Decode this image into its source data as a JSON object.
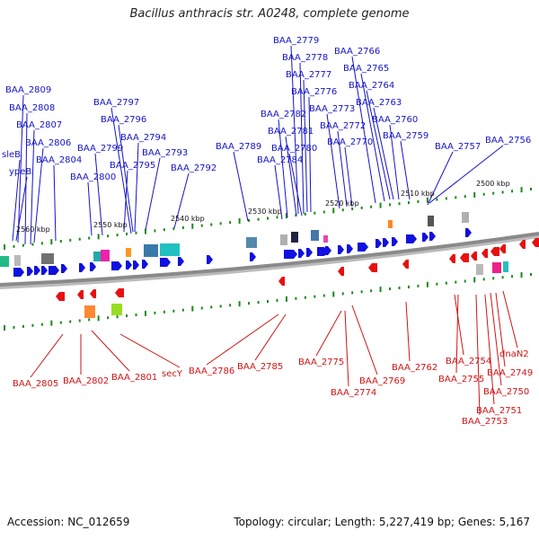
{
  "title": "Bacillus anthracis str. A0248, complete genome",
  "footer": {
    "accession": "Accession: NC_012659",
    "summary": "Topology: circular; Length: 5,227,419 bp; Genes: 5,167"
  },
  "colors": {
    "forward_gene": "#1010e0",
    "reverse_gene": "#e81010",
    "backbone": "#8a8a8a",
    "tick": "#1a8a1a"
  },
  "scale_labels": [
    "2560 kbp",
    "2550 kbp",
    "2540 kbp",
    "2530 kbp",
    "2520 kbp",
    "2510 kbp",
    "2500 kbp"
  ],
  "top_genes": [
    "BAA_2809",
    "BAA_2808",
    "BAA_2807",
    "BAA_2806",
    "BAA_2804",
    "sleB",
    "ypeB",
    "BAA_2797",
    "BAA_2796",
    "BAA_2799",
    "BAA_2800",
    "BAA_2794",
    "BAA_2795",
    "BAA_2793",
    "BAA_2792",
    "BAA_2789",
    "BAA_2779",
    "BAA_2778",
    "BAA_2777",
    "BAA_2776",
    "BAA_2782",
    "BAA_2781",
    "BAA_2784",
    "BAA_2780",
    "BAA_2773",
    "BAA_2772",
    "BAA_2770",
    "BAA_2766",
    "BAA_2765",
    "BAA_2764",
    "BAA_2763",
    "BAA_2760",
    "BAA_2759",
    "BAA_2757",
    "BAA_2756"
  ],
  "bottom_genes": [
    "BAA_2805",
    "BAA_2802",
    "BAA_2801",
    "secY",
    "BAA_2786",
    "BAA_2785",
    "BAA_2775",
    "BAA_2774",
    "BAA_2769",
    "BAA_2762",
    "BAA_2754",
    "BAA_2755",
    "dnaN2",
    "BAA_2749",
    "BAA_2750",
    "BAA_2751",
    "BAA_2753"
  ]
}
